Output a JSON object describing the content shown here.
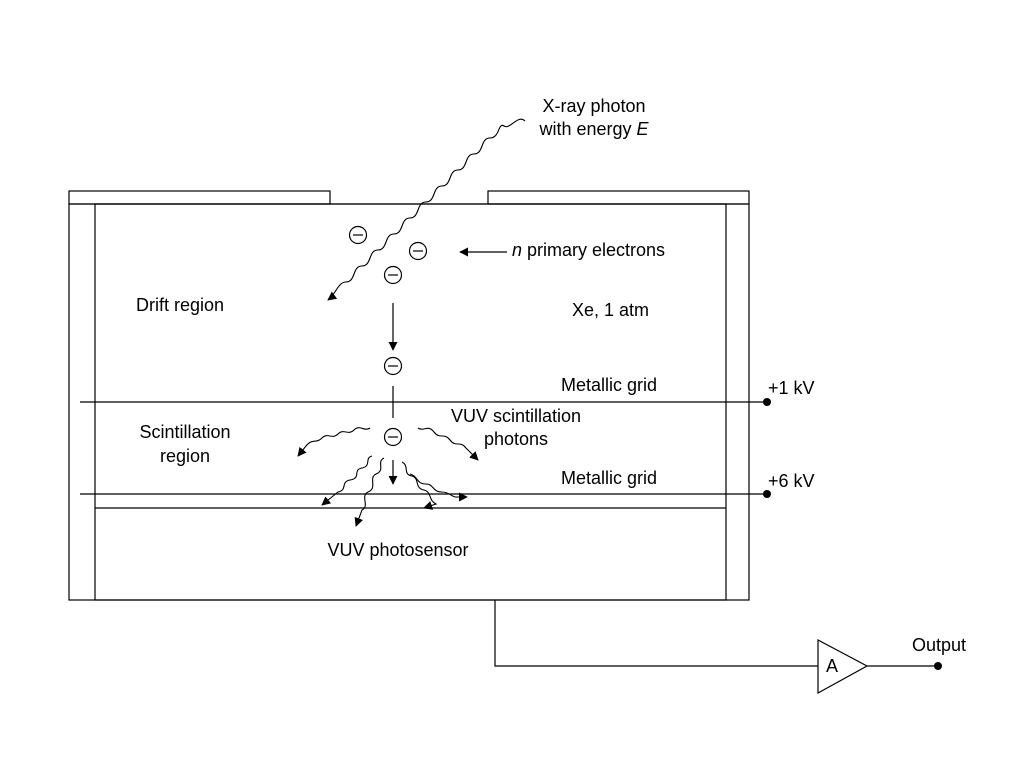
{
  "labels": {
    "xray_line1": "X-ray photon",
    "xray_line2_prefix": "with energy ",
    "xray_line2_var": "E",
    "primary_var": "n",
    "primary_rest": " primary electrons",
    "drift_region": "Drift region",
    "gas": "Xe, 1 atm",
    "grid_upper": "Metallic grid",
    "grid_lower": "Metallic grid",
    "voltage_upper": "+1 kV",
    "voltage_lower": "+6 kV",
    "scint_line1": "Scintillation",
    "scint_line2": "region",
    "vuv_line1": "VUV scintillation",
    "vuv_line2": "photons",
    "photosensor": "VUV photosensor",
    "amplifier": "A",
    "output": "Output"
  },
  "electron_symbol": "⊖"
}
